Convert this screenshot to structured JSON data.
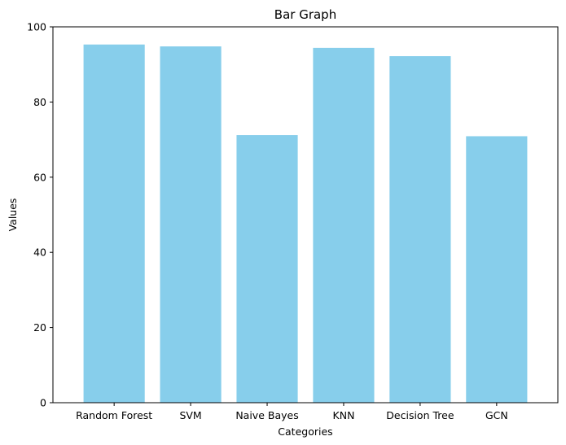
{
  "chart_data": {
    "type": "bar",
    "title": "Bar Graph",
    "xlabel": "Categories",
    "ylabel": "Values",
    "categories": [
      "Random Forest",
      "SVM",
      "Naive Bayes",
      "KNN",
      "Decision Tree",
      "GCN"
    ],
    "values": [
      95.3,
      94.8,
      71.2,
      94.4,
      92.2,
      70.9
    ],
    "ylim": [
      0,
      100
    ],
    "yticks": [
      0,
      20,
      40,
      60,
      80,
      100
    ],
    "grid": false,
    "bar_color": "#87CEEB"
  }
}
